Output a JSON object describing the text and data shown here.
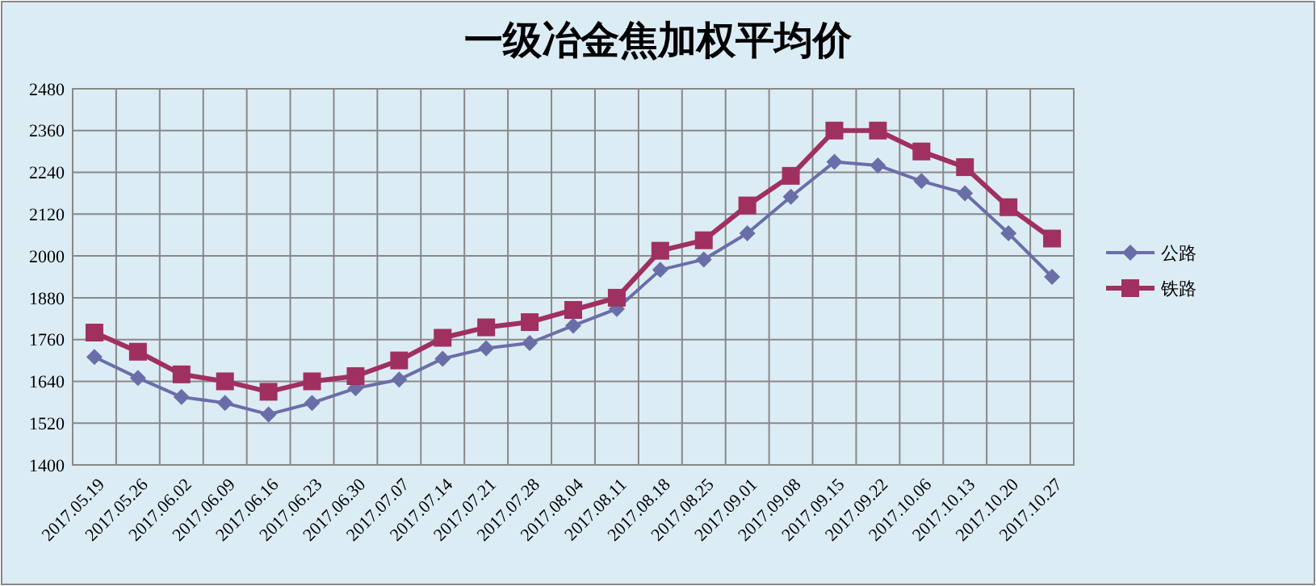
{
  "chart_data": {
    "type": "line",
    "title": "一级冶金焦加权平均价",
    "categories": [
      "2017.05.19",
      "2017.05.26",
      "2017.06.02",
      "2017.06.09",
      "2017.06.16",
      "2017.06.23",
      "2017.06.30",
      "2017.07.07",
      "2017.07.14",
      "2017.07.21",
      "2017.07.28",
      "2017.08.04",
      "2017.08.11",
      "2017.08.18",
      "2017.08.25",
      "2017.09.01",
      "2017.09.08",
      "2017.09.15",
      "2017.09.22",
      "2017.10.06",
      "2017.10.13",
      "2017.10.20",
      "2017.10.27"
    ],
    "series": [
      {
        "name": "公路",
        "color": "#6a6ea8",
        "marker": "diamond",
        "values": [
          1710,
          1650,
          1595,
          1578,
          1545,
          1578,
          1620,
          1645,
          1705,
          1735,
          1750,
          1800,
          1848,
          1960,
          1990,
          2065,
          2170,
          2270,
          2260,
          2215,
          2180,
          2065,
          1940
        ]
      },
      {
        "name": "铁路",
        "color": "#a0305f",
        "marker": "square",
        "values": [
          1780,
          1725,
          1660,
          1640,
          1610,
          1640,
          1655,
          1700,
          1765,
          1795,
          1810,
          1845,
          1880,
          2015,
          2045,
          2145,
          2230,
          2360,
          2360,
          2300,
          2255,
          2140,
          2050
        ]
      }
    ],
    "ylim": [
      1400,
      2480
    ],
    "yticks": [
      1400,
      1520,
      1640,
      1760,
      1880,
      2000,
      2120,
      2240,
      2360,
      2480
    ],
    "grid": true,
    "legend": "right",
    "line_style": "solid"
  }
}
